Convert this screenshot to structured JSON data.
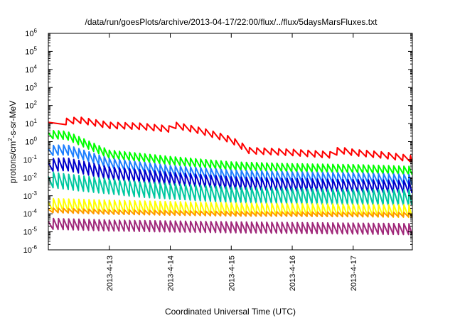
{
  "chart_data": {
    "type": "line",
    "title": "/data/run/goesPlots/archive/2013-04-17/22:00/flux/../flux/5daysMarsFluxes.txt",
    "xlabel": "Coordinated Universal Time (UTC)",
    "ylabel": {
      "pre": "protons/cm",
      "sup": "2",
      "post": "-s-sr-MeV"
    },
    "yscale": "log",
    "ylim": [
      1e-06,
      1000000.0
    ],
    "xlim": [
      0,
      5.97
    ],
    "x_units": "days since 2013-4-12 00:00 UTC",
    "grid": false,
    "legend": "none",
    "y_ticks": [
      {
        "base": "10",
        "exp": "-6",
        "value": -6
      },
      {
        "base": "10",
        "exp": "-5",
        "value": -5
      },
      {
        "base": "10",
        "exp": "-4",
        "value": -4
      },
      {
        "base": "10",
        "exp": "-3",
        "value": -3
      },
      {
        "base": "10",
        "exp": "-2",
        "value": -2
      },
      {
        "base": "10",
        "exp": "-1",
        "value": -1
      },
      {
        "base": "10",
        "exp": "0",
        "value": 0
      },
      {
        "base": "10",
        "exp": "1",
        "value": 1
      },
      {
        "base": "10",
        "exp": "2",
        "value": 2
      },
      {
        "base": "10",
        "exp": "3",
        "value": 3
      },
      {
        "base": "10",
        "exp": "4",
        "value": 4
      },
      {
        "base": "10",
        "exp": "5",
        "value": 5
      },
      {
        "base": "10",
        "exp": "6",
        "value": 6
      }
    ],
    "x_ticks": [
      {
        "label": "2013-4-13",
        "value": 1
      },
      {
        "label": "2013-4-14",
        "value": 2
      },
      {
        "label": "2013-4-15",
        "value": 3
      },
      {
        "label": "2013-4-16",
        "value": 4
      },
      {
        "label": "2013-4-17",
        "value": 5
      }
    ],
    "sawtooth_period_days": 0.0833,
    "series": [
      {
        "color": "#ff0000",
        "trend": [
          [
            0,
            1.0
          ],
          [
            0.5,
            1.2
          ],
          [
            1.0,
            0.9
          ],
          [
            1.5,
            0.85
          ],
          [
            1.98,
            0.7
          ],
          [
            2.02,
            0.95
          ],
          [
            2.5,
            0.6
          ],
          [
            3.0,
            0.1
          ],
          [
            3.3,
            -0.5
          ],
          [
            4.0,
            -0.6
          ],
          [
            4.7,
            -0.75
          ],
          [
            4.75,
            -0.45
          ],
          [
            5.0,
            -0.6
          ],
          [
            5.5,
            -0.75
          ],
          [
            5.97,
            -0.95
          ]
        ],
        "amp": 0.35,
        "period": 0.12,
        "start": 0.3
      },
      {
        "color": "#00ff00",
        "trend": [
          [
            0,
            0.4
          ],
          [
            0.3,
            0.35
          ],
          [
            1.0,
            -0.7
          ],
          [
            2.0,
            -1.05
          ],
          [
            3.0,
            -1.35
          ],
          [
            4.0,
            -1.45
          ],
          [
            5.0,
            -1.5
          ],
          [
            5.97,
            -1.6
          ]
        ],
        "amp": 0.45
      },
      {
        "color": "#1e7fff",
        "trend": [
          [
            0,
            -0.5
          ],
          [
            0.3,
            -0.45
          ],
          [
            1.0,
            -1.2
          ],
          [
            2.0,
            -1.6
          ],
          [
            3.0,
            -1.85
          ],
          [
            4.0,
            -1.95
          ],
          [
            5.0,
            -2.0
          ],
          [
            5.97,
            -2.1
          ]
        ],
        "amp": 0.55
      },
      {
        "color": "#0000cc",
        "trend": [
          [
            0,
            -1.3
          ],
          [
            0.3,
            -1.25
          ],
          [
            1.0,
            -1.75
          ],
          [
            2.0,
            -2.05
          ],
          [
            3.0,
            -2.3
          ],
          [
            4.0,
            -2.4
          ],
          [
            5.0,
            -2.45
          ],
          [
            5.97,
            -2.5
          ]
        ],
        "amp": 0.7
      },
      {
        "color": "#00c8a0",
        "trend": [
          [
            0,
            -2.1
          ],
          [
            0.5,
            -2.3
          ],
          [
            1.5,
            -2.65
          ],
          [
            3.0,
            -2.95
          ],
          [
            4.5,
            -3.05
          ],
          [
            5.97,
            -3.1
          ]
        ],
        "amp": 0.85
      },
      {
        "color": "#ffff00",
        "trend": [
          [
            0,
            -3.5
          ],
          [
            1.0,
            -3.6
          ],
          [
            3.0,
            -3.75
          ],
          [
            5.97,
            -3.85
          ]
        ],
        "amp": 0.7
      },
      {
        "color": "#ff9900",
        "trend": [
          [
            0,
            -3.8
          ],
          [
            1.0,
            -3.9
          ],
          [
            3.0,
            -4.0
          ],
          [
            5.97,
            -4.05
          ]
        ],
        "amp": 0.25
      },
      {
        "color": "#a0287a",
        "trend": [
          [
            0,
            -4.55
          ],
          [
            1.0,
            -4.65
          ],
          [
            3.0,
            -4.75
          ],
          [
            5.97,
            -4.85
          ]
        ],
        "amp": 0.6
      }
    ]
  }
}
